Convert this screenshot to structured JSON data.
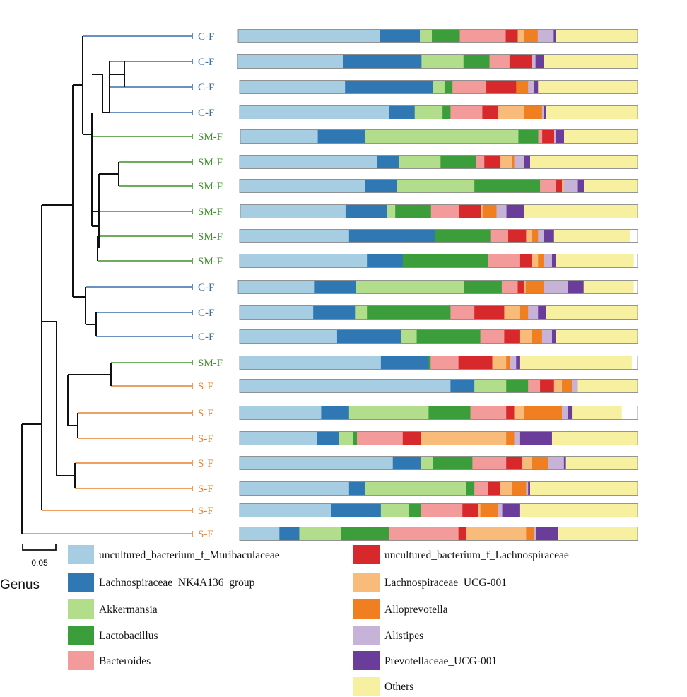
{
  "chart_data": {
    "type": "bar",
    "subtype": "stacked-horizontal-100-percent-with-dendrogram",
    "level_label": "Genus",
    "scale_bar_label": "0.05",
    "categories": [
      "C-F",
      "C-F",
      "C-F",
      "C-F",
      "SM-F",
      "SM-F",
      "SM-F",
      "SM-F",
      "SM-F",
      "SM-F",
      "C-F",
      "C-F",
      "C-F",
      "SM-F",
      "S-F",
      "S-F",
      "S-F",
      "S-F",
      "S-F",
      "S-F",
      "S-F"
    ],
    "groups": [
      {
        "name": "C-F",
        "color": "#3a6fa6"
      },
      {
        "name": "SM-F",
        "color": "#3f8f2a"
      },
      {
        "name": "S-F",
        "color": "#e5822e"
      }
    ],
    "series": [
      {
        "name": "uncultured_bacterium_f_Muribaculaceae",
        "color": "#a6cde2",
        "values": [
          35.5,
          26.5,
          26.5,
          37.5,
          19.5,
          34.5,
          31.5,
          26.5,
          27.5,
          32,
          19,
          18.5,
          24.5,
          35.5,
          53,
          20.5,
          19.5,
          38.5,
          27.5,
          23,
          10
        ]
      },
      {
        "name": "Lachnospiraceae_NK4A136_group",
        "color": "#2f78b3",
        "values": [
          10,
          19.5,
          22,
          6.5,
          12,
          5.5,
          8,
          10.5,
          21.5,
          9,
          10.5,
          10.5,
          16,
          12,
          6,
          7,
          5.5,
          7,
          4,
          12.5,
          5
        ]
      },
      {
        "name": "Akkermansia",
        "color": "#b2de8b",
        "values": [
          3,
          10.5,
          3,
          7,
          38.5,
          10.5,
          19.5,
          2,
          0,
          0,
          27,
          3,
          4,
          0,
          8,
          20,
          3.5,
          3,
          25.5,
          7,
          10.5
        ]
      },
      {
        "name": "Lactobacillus",
        "color": "#3c9e3a",
        "values": [
          7,
          6.5,
          2,
          2,
          5,
          9,
          16.5,
          9,
          14,
          21.5,
          9.5,
          21,
          16,
          0.5,
          5.5,
          10.5,
          1,
          10,
          2,
          3,
          12
        ]
      },
      {
        "name": "Bacteroides",
        "color": "#f29b9a",
        "values": [
          11.5,
          5,
          8.5,
          8,
          1,
          2,
          4,
          7,
          4.5,
          8,
          4,
          6,
          6,
          7,
          3,
          9,
          11.5,
          8.5,
          3.5,
          10.5,
          17.5
        ]
      },
      {
        "name": "uncultured_bacterium_f_Lachnospiraceae",
        "color": "#d7282b",
        "values": [
          3,
          5.5,
          7.5,
          4,
          3,
          4,
          1.5,
          5.5,
          4.5,
          3,
          1.5,
          7.5,
          4,
          8.5,
          3.5,
          2,
          4.5,
          4,
          3,
          4,
          2
        ]
      },
      {
        "name": "Lachnospiraceae_UCG-001",
        "color": "#f8bb7a",
        "values": [
          1.5,
          0,
          0,
          6.5,
          0,
          3,
          0.5,
          0.5,
          1.5,
          1.5,
          0.5,
          4,
          3,
          3.5,
          2,
          2.5,
          21.5,
          2.5,
          3,
          0.5,
          15
        ]
      },
      {
        "name": "Alloprevotella",
        "color": "#f07f22",
        "values": [
          3.5,
          0,
          3,
          4.5,
          0,
          0.5,
          0,
          3.5,
          1.5,
          1.5,
          4.5,
          2,
          2.5,
          1,
          2.5,
          9.5,
          2,
          4,
          3.5,
          4.5,
          2
        ]
      },
      {
        "name": "Alistipes",
        "color": "#c8b3d8",
        "values": [
          4,
          1,
          1.5,
          0.5,
          0.5,
          2.5,
          3.5,
          2.5,
          1.5,
          2,
          6,
          2.5,
          2.5,
          1.5,
          1.5,
          1.5,
          1.5,
          4,
          0.5,
          1,
          0.5
        ]
      },
      {
        "name": "Prevotellaceae_UCG-001",
        "color": "#6a3d9a",
        "values": [
          0.5,
          2,
          1,
          0.5,
          2,
          1.5,
          1.5,
          4.5,
          2.5,
          1,
          4,
          2,
          1,
          1,
          0,
          1,
          8,
          0.5,
          0.5,
          4.5,
          5.5
        ]
      },
      {
        "name": "Others",
        "color": "#f6f0a0",
        "values": [
          20.5,
          23.5,
          25,
          23,
          18.5,
          27,
          13.5,
          28.5,
          19,
          19.5,
          12.5,
          23,
          20.5,
          28,
          15,
          12.5,
          21.5,
          18,
          27,
          29.5,
          20
        ]
      }
    ],
    "xlim": [
      0,
      100
    ]
  }
}
